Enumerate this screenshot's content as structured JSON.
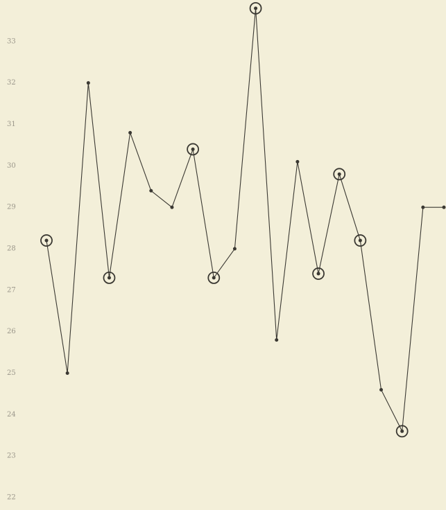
{
  "chart_data": {
    "type": "line",
    "values": [
      28.2,
      25.0,
      32.0,
      27.3,
      30.8,
      29.4,
      29.0,
      30.4,
      27.3,
      28.0,
      33.8,
      25.8,
      30.1,
      27.4,
      29.8,
      28.2,
      24.6,
      23.6,
      29.0,
      29.0
    ],
    "circled": [
      true,
      false,
      false,
      true,
      false,
      false,
      false,
      true,
      true,
      false,
      true,
      false,
      false,
      true,
      true,
      true,
      false,
      true,
      false,
      false
    ],
    "color": "#3a3832",
    "ylim": [
      21.7,
      34.0
    ],
    "yticks": [
      22,
      23,
      24,
      25,
      26,
      27,
      28,
      29,
      30,
      31,
      32,
      33
    ]
  }
}
